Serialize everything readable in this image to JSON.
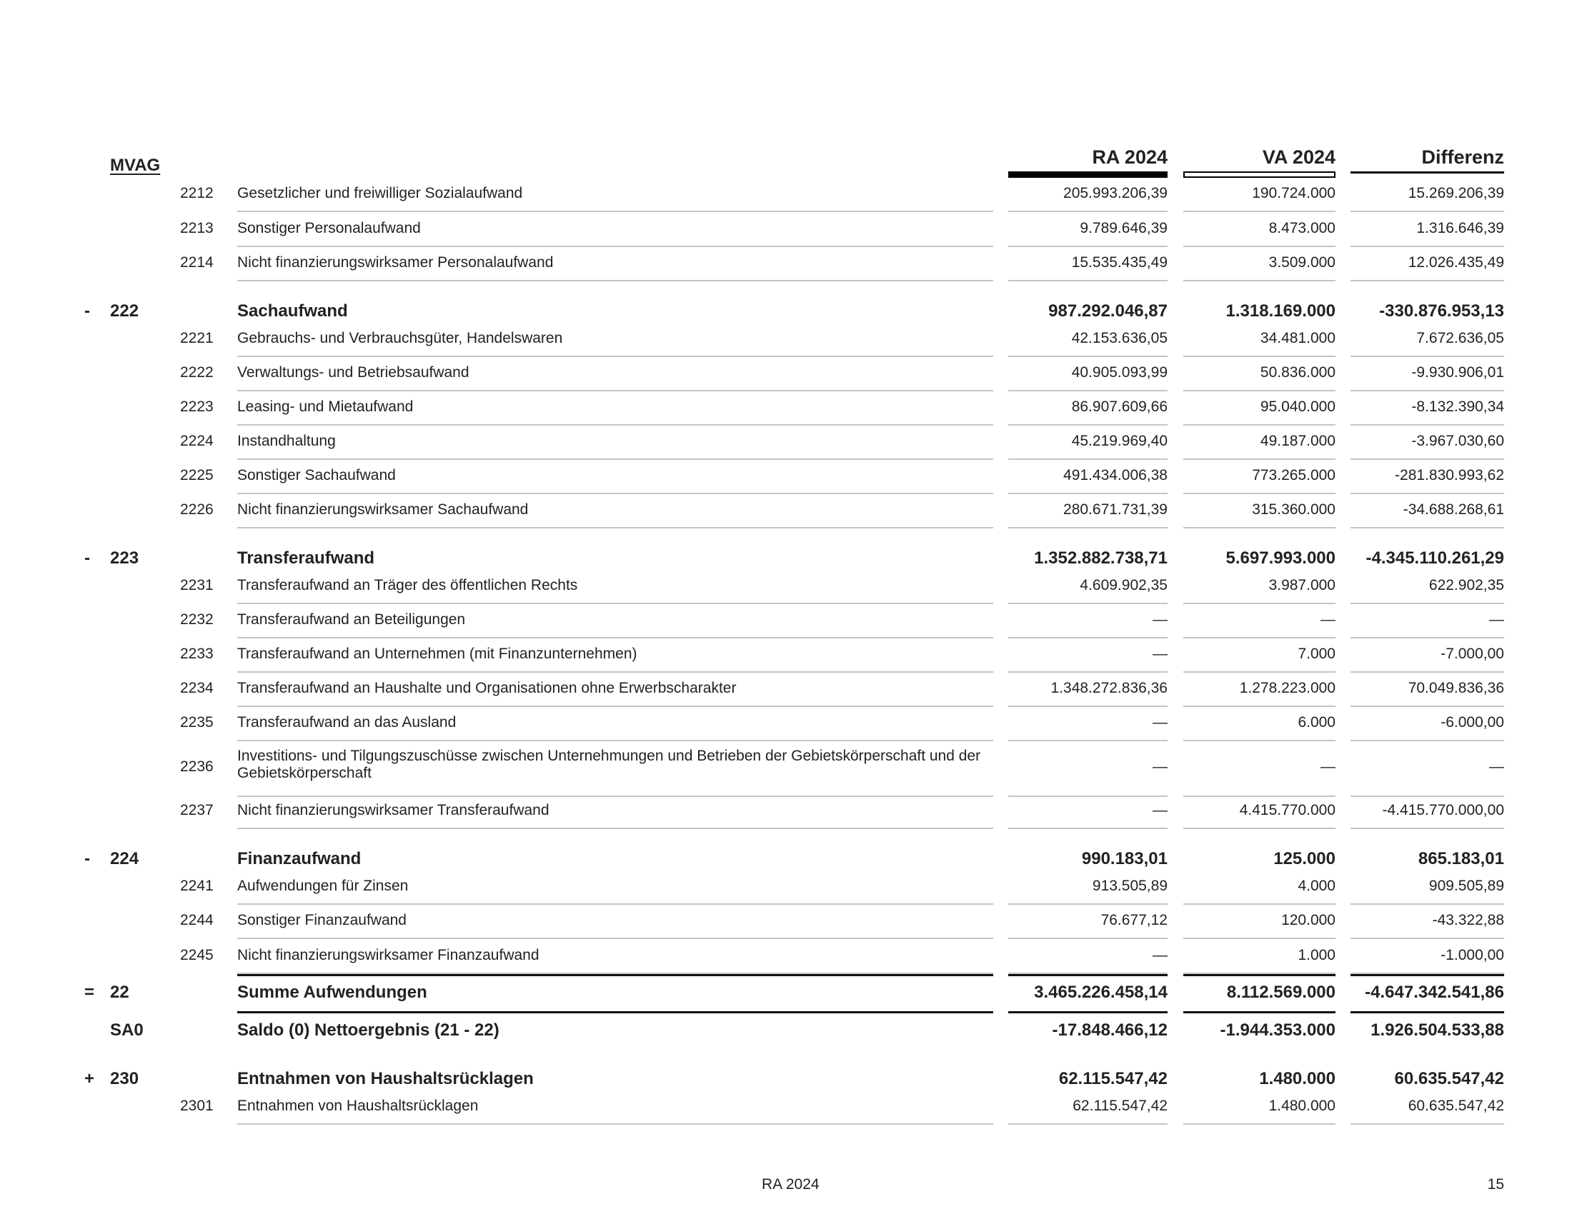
{
  "header": {
    "mvag": "MVAG",
    "col_ra": "RA 2024",
    "col_va": "VA 2024",
    "col_diff": "Differenz"
  },
  "rows": [
    {
      "sign": "",
      "group": "",
      "code": "2212",
      "label": "Gesetzlicher und freiwilliger Sozialaufwand",
      "ra": "205.993.206,39",
      "va": "190.724.000",
      "diff": "15.269.206,39"
    },
    {
      "sign": "",
      "group": "",
      "code": "2213",
      "label": "Sonstiger Personalaufwand",
      "ra": "9.789.646,39",
      "va": "8.473.000",
      "diff": "1.316.646,39"
    },
    {
      "sign": "",
      "group": "",
      "code": "2214",
      "label": "Nicht finanzierungswirksamer Personalaufwand",
      "ra": "15.535.435,49",
      "va": "3.509.000",
      "diff": "12.026.435,49"
    },
    {
      "sign": "-",
      "group": "222",
      "code": "",
      "label": "Sachaufwand",
      "ra": "987.292.046,87",
      "va": "1.318.169.000",
      "diff": "-330.876.953,13",
      "bold": true
    },
    {
      "sign": "",
      "group": "",
      "code": "2221",
      "label": "Gebrauchs- und Verbrauchsgüter, Handelswaren",
      "ra": "42.153.636,05",
      "va": "34.481.000",
      "diff": "7.672.636,05"
    },
    {
      "sign": "",
      "group": "",
      "code": "2222",
      "label": "Verwaltungs- und Betriebsaufwand",
      "ra": "40.905.093,99",
      "va": "50.836.000",
      "diff": "-9.930.906,01"
    },
    {
      "sign": "",
      "group": "",
      "code": "2223",
      "label": "Leasing- und Mietaufwand",
      "ra": "86.907.609,66",
      "va": "95.040.000",
      "diff": "-8.132.390,34"
    },
    {
      "sign": "",
      "group": "",
      "code": "2224",
      "label": "Instandhaltung",
      "ra": "45.219.969,40",
      "va": "49.187.000",
      "diff": "-3.967.030,60"
    },
    {
      "sign": "",
      "group": "",
      "code": "2225",
      "label": "Sonstiger Sachaufwand",
      "ra": "491.434.006,38",
      "va": "773.265.000",
      "diff": "-281.830.993,62"
    },
    {
      "sign": "",
      "group": "",
      "code": "2226",
      "label": "Nicht finanzierungswirksamer Sachaufwand",
      "ra": "280.671.731,39",
      "va": "315.360.000",
      "diff": "-34.688.268,61"
    },
    {
      "sign": "-",
      "group": "223",
      "code": "",
      "label": "Transferaufwand",
      "ra": "1.352.882.738,71",
      "va": "5.697.993.000",
      "diff": "-4.345.110.261,29",
      "bold": true
    },
    {
      "sign": "",
      "group": "",
      "code": "2231",
      "label": "Transferaufwand an Träger des öffentlichen Rechts",
      "ra": "4.609.902,35",
      "va": "3.987.000",
      "diff": "622.902,35"
    },
    {
      "sign": "",
      "group": "",
      "code": "2232",
      "label": "Transferaufwand an Beteiligungen",
      "ra": "—",
      "va": "—",
      "diff": "—"
    },
    {
      "sign": "",
      "group": "",
      "code": "2233",
      "label": "Transferaufwand an Unternehmen (mit Finanzunternehmen)",
      "ra": "—",
      "va": "7.000",
      "diff": "-7.000,00"
    },
    {
      "sign": "",
      "group": "",
      "code": "2234",
      "label": "Transferaufwand an Haushalte und Organisationen ohne Erwerbscharakter",
      "ra": "1.348.272.836,36",
      "va": "1.278.223.000",
      "diff": "70.049.836,36"
    },
    {
      "sign": "",
      "group": "",
      "code": "2235",
      "label": "Transferaufwand an das Ausland",
      "ra": "—",
      "va": "6.000",
      "diff": "-6.000,00"
    },
    {
      "sign": "",
      "group": "",
      "code": "2236",
      "label": "Investitions- und Tilgungszuschüsse zwischen Unternehmungen und Betrieben der Gebietskörperschaft und der Gebietskörperschaft",
      "ra": "—",
      "va": "—",
      "diff": "—",
      "two": true
    },
    {
      "sign": "",
      "group": "",
      "code": "2237",
      "label": "Nicht finanzierungswirksamer Transferaufwand",
      "ra": "—",
      "va": "4.415.770.000",
      "diff": "-4.415.770.000,00"
    },
    {
      "sign": "-",
      "group": "224",
      "code": "",
      "label": "Finanzaufwand",
      "ra": "990.183,01",
      "va": "125.000",
      "diff": "865.183,01",
      "bold": true
    },
    {
      "sign": "",
      "group": "",
      "code": "2241",
      "label": "Aufwendungen für Zinsen",
      "ra": "913.505,89",
      "va": "4.000",
      "diff": "909.505,89"
    },
    {
      "sign": "",
      "group": "",
      "code": "2244",
      "label": "Sonstiger Finanzaufwand",
      "ra": "76.677,12",
      "va": "120.000",
      "diff": "-43.322,88"
    },
    {
      "sign": "",
      "group": "",
      "code": "2245",
      "label": "Nicht finanzierungswirksamer Finanzaufwand",
      "ra": "—",
      "va": "1.000",
      "diff": "-1.000,00"
    },
    {
      "sign": "=",
      "group": "22",
      "code": "",
      "label": "Summe Aufwendungen",
      "ra": "3.465.226.458,14",
      "va": "8.112.569.000",
      "diff": "-4.647.342.541,86",
      "bold": true
    },
    {
      "sign": "",
      "group": "SA0",
      "code": "",
      "label": "Saldo (0) Nettoergebnis (21 - 22)",
      "ra": "-17.848.466,12",
      "va": "-1.944.353.000",
      "diff": "1.926.504.533,88",
      "bold": true
    },
    {
      "sign": "+",
      "group": "230",
      "code": "",
      "label": "Entnahmen von Haushaltsrücklagen",
      "ra": "62.115.547,42",
      "va": "1.480.000",
      "diff": "60.635.547,42",
      "bold": true
    },
    {
      "sign": "",
      "group": "",
      "code": "2301",
      "label": "Entnahmen von Haushaltsrücklagen",
      "ra": "62.115.547,42",
      "va": "1.480.000",
      "diff": "60.635.547,42"
    }
  ],
  "footer": {
    "title": "RA 2024",
    "page": "15"
  }
}
